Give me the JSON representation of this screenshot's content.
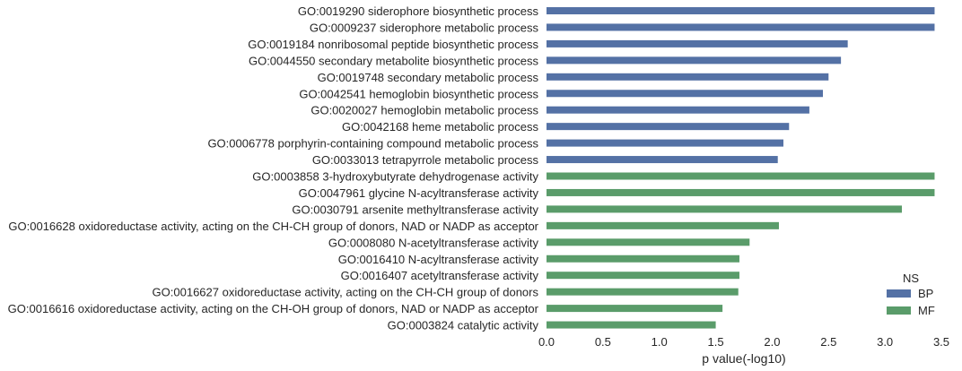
{
  "chart_data": {
    "type": "bar",
    "orientation": "horizontal",
    "title": "",
    "xlabel": "p value(-log10)",
    "ylabel": "",
    "xlim": [
      0,
      3.5
    ],
    "xticks": [
      "0.0",
      "0.5",
      "1.0",
      "1.5",
      "2.0",
      "2.5",
      "3.0",
      "3.5"
    ],
    "grid": false,
    "legend": {
      "title": "NS",
      "placement": "bottom-right",
      "entries": [
        "BP",
        "MF"
      ]
    },
    "colors": {
      "BP": "#5471a5",
      "MF": "#5a9c6a"
    },
    "series": [
      {
        "name": "BP",
        "categories": [
          "GO:0019290 siderophore biosynthetic process",
          "GO:0009237 siderophore metabolic process",
          "GO:0019184 nonribosomal peptide biosynthetic process",
          "GO:0044550 secondary metabolite biosynthetic process",
          "GO:0019748 secondary metabolic process",
          "GO:0042541 hemoglobin biosynthetic process",
          "GO:0020027 hemoglobin metabolic process",
          "GO:0042168 heme metabolic process",
          "GO:0006778 porphyrin-containing compound metabolic process",
          "GO:0033013 tetrapyrrole metabolic process"
        ],
        "values": [
          3.44,
          3.44,
          2.67,
          2.61,
          2.5,
          2.45,
          2.33,
          2.15,
          2.1,
          2.05
        ]
      },
      {
        "name": "MF",
        "categories": [
          "GO:0003858 3-hydroxybutyrate dehydrogenase activity",
          "GO:0047961 glycine N-acyltransferase activity",
          "GO:0030791 arsenite methyltransferase activity",
          "GO:0016628 oxidoreductase activity, acting on the CH-CH group of donors, NAD or NADP as acceptor",
          "GO:0008080 N-acetyltransferase activity",
          "GO:0016410 N-acyltransferase activity",
          "GO:0016407 acetyltransferase activity",
          "GO:0016627 oxidoreductase activity, acting on the CH-CH group of donors",
          "GO:0016616 oxidoreductase activity, acting on the CH-OH group of donors, NAD or NADP as acceptor",
          "GO:0003824 catalytic activity"
        ],
        "values": [
          3.44,
          3.44,
          3.15,
          2.06,
          1.8,
          1.71,
          1.71,
          1.7,
          1.56,
          1.5
        ]
      }
    ]
  }
}
